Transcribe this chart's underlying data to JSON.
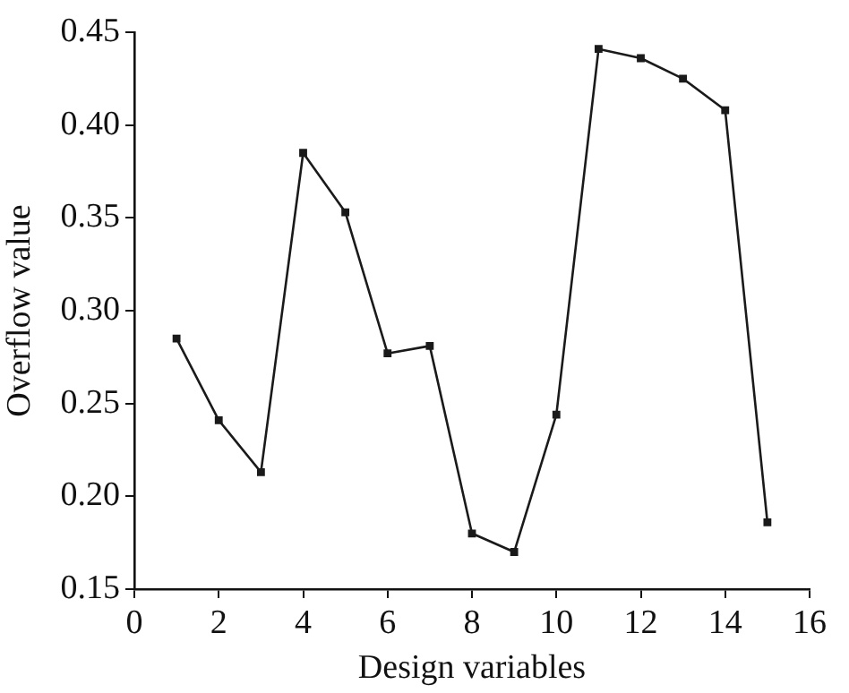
{
  "chart_data": {
    "type": "line",
    "xlabel": "Design variables",
    "ylabel": "Overflow value",
    "x": [
      1,
      2,
      3,
      4,
      5,
      6,
      7,
      8,
      9,
      10,
      11,
      12,
      13,
      14,
      15
    ],
    "series": [
      {
        "color": "#1a1a1a",
        "values": [
          0.285,
          0.241,
          0.213,
          0.385,
          0.353,
          0.277,
          0.281,
          0.18,
          0.17,
          0.244,
          0.441,
          0.436,
          0.425,
          0.408,
          0.186
        ]
      }
    ],
    "xlim": [
      0,
      16
    ],
    "xticks": [
      0,
      2,
      4,
      6,
      8,
      10,
      12,
      14,
      16
    ],
    "ylim": [
      0.15,
      0.45
    ],
    "yticks": [
      0.15,
      {
        "value": 0.2,
        "label": "0.20"
      },
      0.25,
      {
        "value": 0.3,
        "label": "0.30"
      },
      0.35,
      {
        "value": 0.4,
        "label": "0.40"
      },
      0.45
    ],
    "grid": false,
    "legend": false,
    "marker": "square",
    "line_style": "solid"
  }
}
